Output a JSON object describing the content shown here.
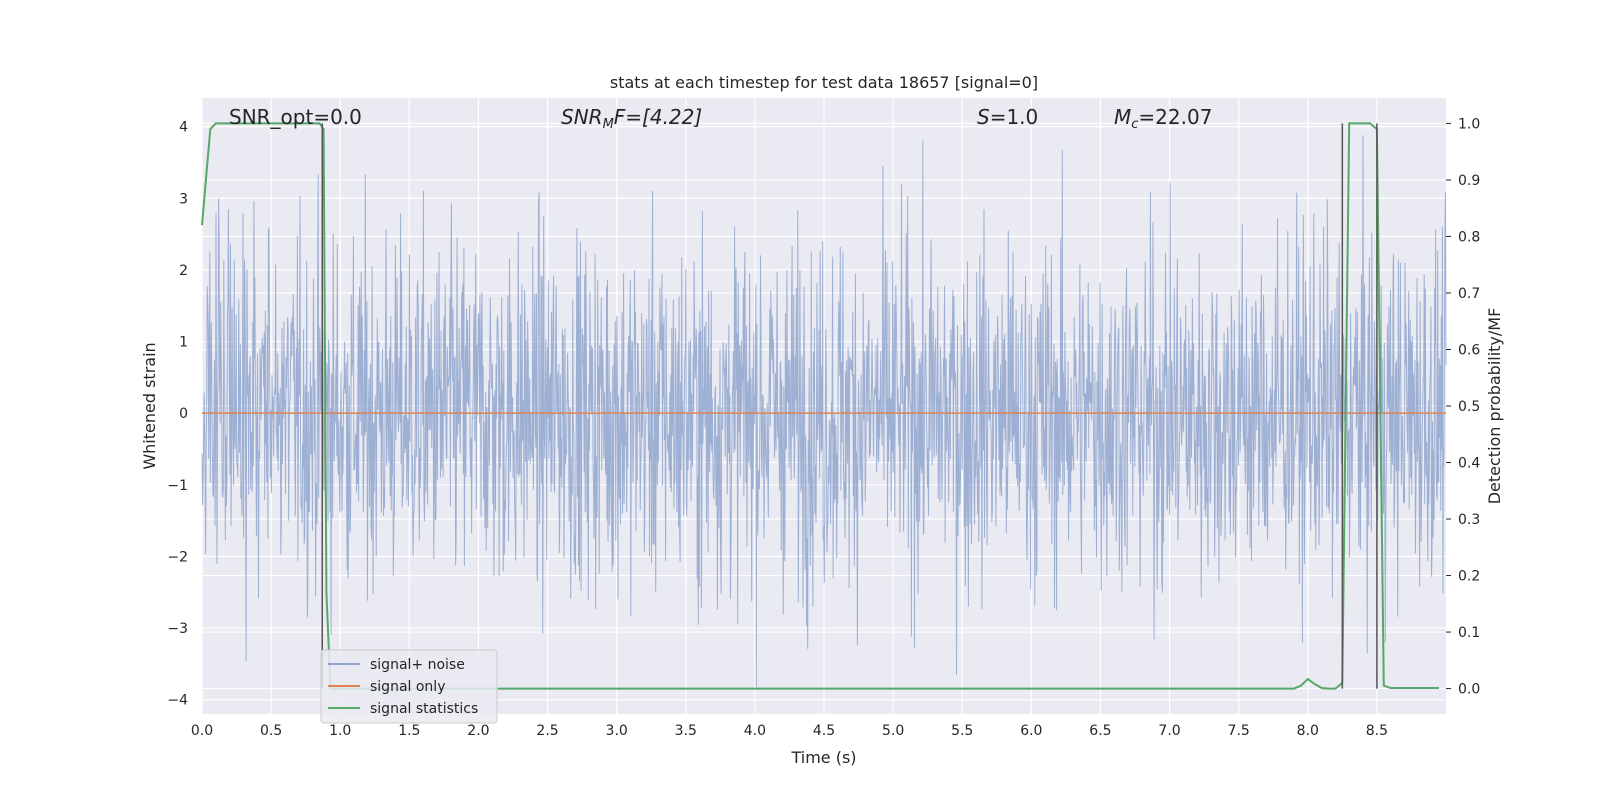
{
  "chart_data": {
    "type": "line",
    "title": "stats at each timestep for test data 18657 [signal=0]",
    "xlabel": "Time (s)",
    "ylabel": "Whitened strain",
    "ylabel_right": "Detection probability/MF",
    "xlim": [
      0.0,
      9.0
    ],
    "ylim": [
      -4.2,
      4.4
    ],
    "ylim_right": [
      -0.045,
      1.045
    ],
    "x_ticks": [
      "0.0",
      "0.5",
      "1.0",
      "1.5",
      "2.0",
      "2.5",
      "3.0",
      "3.5",
      "4.0",
      "4.5",
      "5.0",
      "5.5",
      "6.0",
      "6.5",
      "7.0",
      "7.5",
      "8.0",
      "8.5"
    ],
    "y_ticks": [
      "4",
      "3",
      "2",
      "1",
      "0",
      "−1",
      "−2",
      "−3",
      "−4"
    ],
    "y_right_ticks": [
      "1.0",
      "0.9",
      "0.8",
      "0.7",
      "0.6",
      "0.5",
      "0.4",
      "0.3",
      "0.2",
      "0.1",
      "0.0"
    ],
    "grid": true,
    "legend_position": "lower-left",
    "annotations": {
      "snr_opt": "SNR_opt=0.0",
      "snr_mf": "SNR",
      "snr_mf_sub": "M",
      "snr_mf_rest": "F=[4.22]",
      "s_var": "S",
      "s_value": "=1.0",
      "mc_var": "M",
      "mc_sub": "c",
      "mc_value": "=22.07"
    },
    "series": [
      {
        "name": "signal+ noise",
        "color": "#8fa4cc",
        "axis": "left",
        "envelope_upper_approx": 2.3,
        "envelope_lower_approx": -2.3,
        "sample_count_approx": 9000
      },
      {
        "name": "signal only",
        "color": "#dd8452",
        "axis": "left",
        "x": [
          0.0,
          9.0
        ],
        "y": [
          0.0,
          0.0
        ]
      },
      {
        "name": "signal statistics",
        "color": "#55a868",
        "axis": "right",
        "x": [
          0.0,
          0.06,
          0.1,
          0.2,
          0.3,
          0.4,
          0.5,
          0.6,
          0.7,
          0.8,
          0.85,
          0.88,
          0.9,
          0.93,
          0.96,
          1.0,
          1.5,
          2.0,
          2.5,
          3.0,
          3.5,
          4.0,
          4.5,
          5.0,
          5.5,
          6.0,
          6.5,
          7.0,
          7.5,
          7.9,
          7.95,
          8.0,
          8.05,
          8.1,
          8.15,
          8.2,
          8.25,
          8.3,
          8.35,
          8.4,
          8.45,
          8.5,
          8.55,
          8.6,
          8.7,
          8.8,
          8.9,
          8.95
        ],
        "y": [
          0.82,
          0.99,
          1.0,
          1.0,
          1.0,
          1.0,
          1.0,
          1.0,
          1.0,
          1.0,
          1.0,
          0.99,
          0.17,
          0.0,
          0.0,
          0.0,
          0.0,
          0.0,
          0.0,
          0.0,
          0.0,
          0.0,
          0.0,
          0.0,
          0.0,
          0.0,
          0.0,
          0.0,
          0.0,
          0.0,
          0.005,
          0.017,
          0.008,
          0.001,
          0.0,
          0.0,
          0.01,
          1.0,
          1.0,
          1.0,
          1.0,
          0.99,
          0.005,
          0.001,
          0.001,
          0.001,
          0.001,
          0.001
        ]
      }
    ],
    "vertical_markers": [
      0.87,
      8.25,
      8.5
    ]
  }
}
